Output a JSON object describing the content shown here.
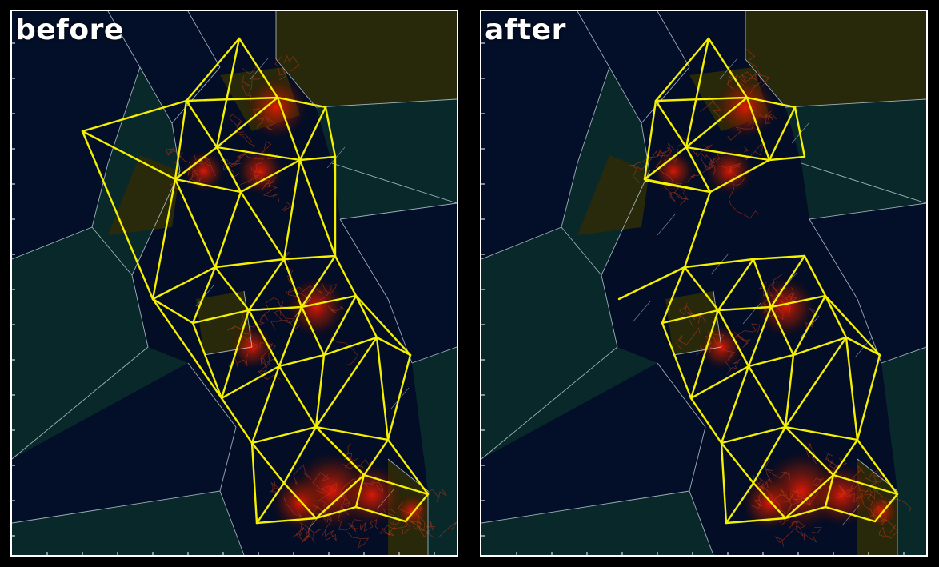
{
  "panels": [
    {
      "id": "before",
      "label": "before"
    },
    {
      "id": "after",
      "label": "after"
    }
  ],
  "colors": {
    "background": "#030d26",
    "cell_dark": "#031029",
    "cell_teal": "#0a2a2a",
    "cell_olive": "#2a2a0a",
    "voronoi_edge": "#cfe0ea",
    "graph_edge": "#f4f000",
    "density_hot": "#ff1a00",
    "trajectory": "#c63a1a"
  }
}
